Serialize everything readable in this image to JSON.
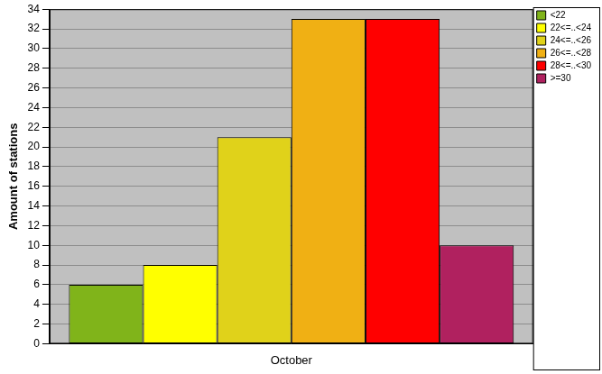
{
  "chart_data": {
    "type": "bar",
    "y_label": "Amount of stations",
    "categories": [
      "October"
    ],
    "series": [
      {
        "name": "<22",
        "color": "#80b41a",
        "values": [
          6
        ]
      },
      {
        "name": "22<=..<24",
        "color": "#ffff00",
        "values": [
          8
        ]
      },
      {
        "name": "24<=..<26",
        "color": "#e0d21a",
        "values": [
          21
        ]
      },
      {
        "name": "26<=..<28",
        "color": "#f0b014",
        "values": [
          33
        ]
      },
      {
        "name": "28<=..<30",
        "color": "#ff0000",
        "values": [
          33
        ]
      },
      {
        "name": ">=30",
        "color": "#b0215f",
        "values": [
          10
        ]
      }
    ],
    "ylim": [
      0,
      34
    ],
    "yticks": [
      0,
      2,
      4,
      6,
      8,
      10,
      12,
      14,
      16,
      18,
      20,
      22,
      24,
      26,
      28,
      30,
      32,
      34
    ],
    "grid": true,
    "legend": "right"
  }
}
